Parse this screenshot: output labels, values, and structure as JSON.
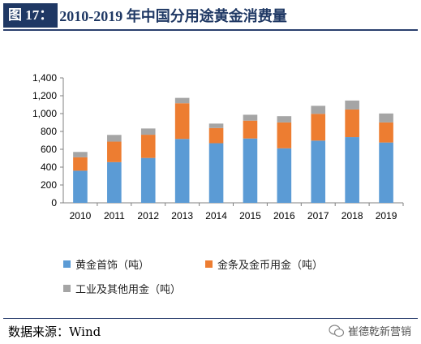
{
  "header": {
    "fig_label": "图 17：",
    "title": "2010-2019 年中国分用途黄金消费量"
  },
  "footer": {
    "source": "数据来源：Wind",
    "watermark": "崔德乾新营销"
  },
  "colors": {
    "series": [
      "#5b9bd5",
      "#ed7d31",
      "#a5a5a5"
    ],
    "axis": "#808080"
  },
  "chart_data": {
    "type": "bar",
    "stacked": true,
    "categories": [
      "2010",
      "2011",
      "2012",
      "2013",
      "2014",
      "2015",
      "2016",
      "2017",
      "2018",
      "2019"
    ],
    "series": [
      {
        "name": "黄金首饰（吨）",
        "values": [
          360,
          456,
          503,
          716,
          668,
          721,
          611,
          697,
          736,
          676
        ]
      },
      {
        "name": "金条及金币用金（吨）",
        "values": [
          150,
          230,
          260,
          400,
          170,
          200,
          290,
          300,
          310,
          225
        ]
      },
      {
        "name": "工业及其他用金（吨）",
        "values": [
          60,
          75,
          70,
          60,
          50,
          66,
          70,
          90,
          100,
          100
        ]
      }
    ],
    "ylim": [
      0,
      1400
    ],
    "yticks": [
      0,
      200,
      400,
      600,
      800,
      1000,
      1200,
      1400
    ],
    "ytick_labels": [
      "0",
      "200",
      "400",
      "600",
      "800",
      "1,000",
      "1,200",
      "1,400"
    ],
    "grid": false,
    "legend_position": "bottom"
  }
}
